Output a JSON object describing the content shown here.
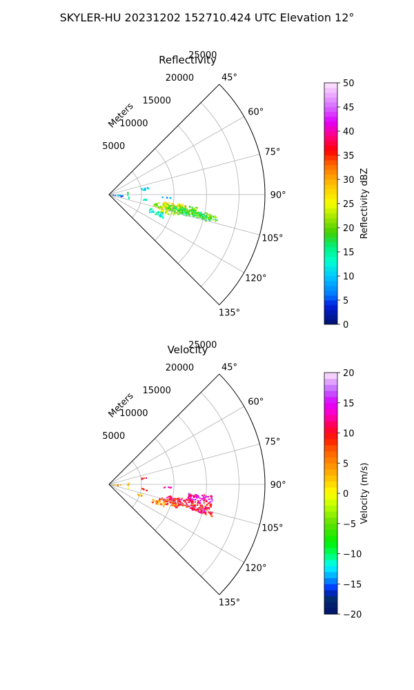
{
  "suptitle": "SKYLER-HU  20231202  152710.424 UTC Elevation 12°",
  "chart_data": [
    {
      "type": "heatmap",
      "subtype": "polar-sector-ppi",
      "title": "Reflectivity",
      "radial_label": "Meters",
      "radial_ticks": [
        5000,
        10000,
        15000,
        20000,
        25000
      ],
      "radial_tick_labels": [
        "5000",
        "10000",
        "15000",
        "20000",
        "25000"
      ],
      "rlim": [
        0,
        24000
      ],
      "theta_ticks": [
        45,
        60,
        75,
        90,
        105,
        120,
        135
      ],
      "theta_tick_labels": [
        "45°",
        "60°",
        "75°",
        "90°",
        "105°",
        "120°",
        "135°"
      ],
      "theta_range": [
        45,
        135
      ],
      "grid": true,
      "colorbar": {
        "label": "Reflectivity dBZ",
        "min": 0,
        "max": 50,
        "levels": 50,
        "ticks": [
          0,
          5,
          10,
          15,
          20,
          25,
          30,
          35,
          40,
          45,
          50
        ],
        "tick_labels": [
          "0",
          "5",
          "10",
          "15",
          "20",
          "25",
          "30",
          "35",
          "40",
          "45",
          "50"
        ],
        "stops": [
          [
            0,
            "#00126b"
          ],
          [
            4,
            "#001fdd"
          ],
          [
            6,
            "#0074ff"
          ],
          [
            10,
            "#00c8ff"
          ],
          [
            13,
            "#00ffd0"
          ],
          [
            16,
            "#00f080"
          ],
          [
            19,
            "#40d000"
          ],
          [
            22,
            "#a0e600"
          ],
          [
            25,
            "#f6ff00"
          ],
          [
            29,
            "#ffc000"
          ],
          [
            33,
            "#ff6a00"
          ],
          [
            36,
            "#ff0000"
          ],
          [
            39,
            "#ff0080"
          ],
          [
            42,
            "#e000ff"
          ],
          [
            45,
            "#d66bff"
          ],
          [
            50,
            "#ffe8ff"
          ]
        ]
      },
      "blobs": [
        {
          "az_range": [
            97,
            103
          ],
          "r_range": [
            8500,
            12000
          ],
          "value": 28
        },
        {
          "az_range": [
            98,
            104
          ],
          "r_range": [
            7000,
            14000
          ],
          "value": 21
        },
        {
          "az_range": [
            100,
            105
          ],
          "r_range": [
            9000,
            16000
          ],
          "value": 18
        },
        {
          "az_range": [
            104,
            108
          ],
          "r_range": [
            7500,
            11000
          ],
          "value": 24
        },
        {
          "az_range": [
            108,
            113
          ],
          "r_range": [
            6500,
            9000
          ],
          "value": 14
        },
        {
          "az_range": [
            101,
            104
          ],
          "r_range": [
            14000,
            17000
          ],
          "value": 19
        },
        {
          "az_range": [
            87,
            93
          ],
          "r_range": [
            500,
            1800
          ],
          "value": 5
        },
        {
          "az_range": [
            90,
            96
          ],
          "r_range": [
            1000,
            2500
          ],
          "value": 8
        },
        {
          "az_range": [
            76,
            82
          ],
          "r_range": [
            5000,
            6000
          ],
          "value": 11
        },
        {
          "az_range": [
            96,
            98
          ],
          "r_range": [
            5000,
            6000
          ],
          "value": 12
        },
        {
          "az_range": [
            92,
            93
          ],
          "r_range": [
            8000,
            9500
          ],
          "value": 10
        },
        {
          "az_range": [
            80,
            100
          ],
          "r_range": [
            2700,
            3000
          ],
          "value": 17
        }
      ]
    },
    {
      "type": "heatmap",
      "subtype": "polar-sector-ppi",
      "title": "Velocity",
      "radial_label": "Meters",
      "radial_ticks": [
        5000,
        10000,
        15000,
        20000,
        25000
      ],
      "radial_tick_labels": [
        "5000",
        "10000",
        "15000",
        "20000",
        "25000"
      ],
      "rlim": [
        0,
        24000
      ],
      "theta_ticks": [
        45,
        60,
        75,
        90,
        105,
        120,
        135
      ],
      "theta_tick_labels": [
        "45°",
        "60°",
        "75°",
        "90°",
        "105°",
        "120°",
        "135°"
      ],
      "theta_range": [
        45,
        135
      ],
      "grid": true,
      "colorbar": {
        "label": "Velocity (m/s)",
        "min": -20,
        "max": 20,
        "levels": 40,
        "ticks": [
          -20,
          -15,
          -10,
          -5,
          0,
          5,
          10,
          15,
          20
        ],
        "tick_labels": [
          "−20",
          "−15",
          "−10",
          "−5",
          "0",
          "5",
          "10",
          "15",
          "20"
        ],
        "stops": [
          [
            -20,
            "#00126b"
          ],
          [
            -17,
            "#003070"
          ],
          [
            -16,
            "#0020ff"
          ],
          [
            -14,
            "#00a0ff"
          ],
          [
            -12,
            "#00ffff"
          ],
          [
            -10,
            "#00ff60"
          ],
          [
            -8,
            "#00f000"
          ],
          [
            -5,
            "#60e000"
          ],
          [
            -2,
            "#c0ff00"
          ],
          [
            0,
            "#ffff00"
          ],
          [
            2,
            "#ffd000"
          ],
          [
            4,
            "#ffa000"
          ],
          [
            7,
            "#ff6000"
          ],
          [
            9,
            "#ff1a00"
          ],
          [
            11,
            "#ff0040"
          ],
          [
            13,
            "#ff00c0"
          ],
          [
            15,
            "#dd00ff"
          ],
          [
            17,
            "#c060ff"
          ],
          [
            20,
            "#ffe8ff"
          ]
        ]
      },
      "blobs": [
        {
          "az_range": [
            96,
            101
          ],
          "r_range": [
            12000,
            16000
          ],
          "value": 14
        },
        {
          "az_range": [
            100,
            106
          ],
          "r_range": [
            9000,
            16000
          ],
          "value": 10
        },
        {
          "az_range": [
            104,
            109
          ],
          "r_range": [
            7500,
            11000
          ],
          "value": 8
        },
        {
          "az_range": [
            108,
            112
          ],
          "r_range": [
            7000,
            9000
          ],
          "value": 5
        },
        {
          "az_range": [
            104,
            107
          ],
          "r_range": [
            13000,
            16500
          ],
          "value": 11
        },
        {
          "az_range": [
            86,
            94
          ],
          "r_range": [
            500,
            1800
          ],
          "value": 3
        },
        {
          "az_range": [
            96,
            99
          ],
          "r_range": [
            5000,
            6000
          ],
          "value": 8
        },
        {
          "az_range": [
            106,
            110
          ],
          "r_range": [
            4500,
            5500
          ],
          "value": 3
        },
        {
          "az_range": [
            92,
            93
          ],
          "r_range": [
            8000,
            9500
          ],
          "value": 14
        },
        {
          "az_range": [
            78,
            80
          ],
          "r_range": [
            5000,
            5800
          ],
          "value": 11
        },
        {
          "az_range": [
            80,
            100
          ],
          "r_range": [
            2700,
            3000
          ],
          "value": 1
        }
      ]
    }
  ]
}
